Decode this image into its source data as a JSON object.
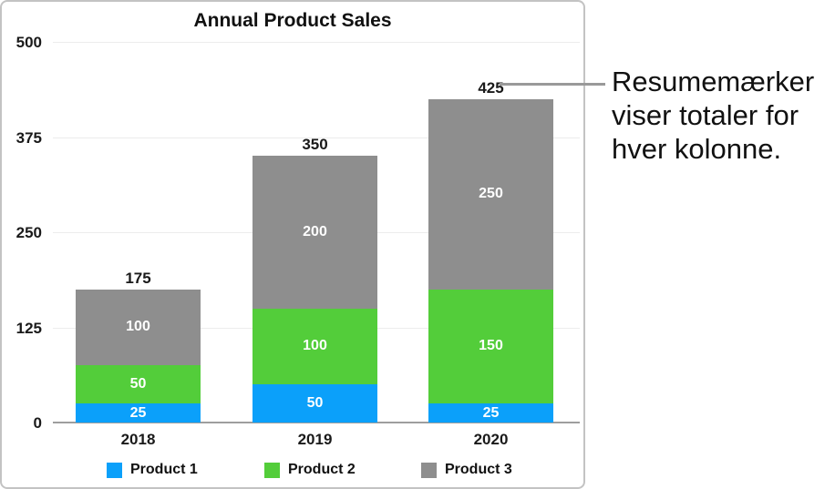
{
  "chart_data": {
    "type": "bar",
    "stacked": true,
    "title": "Annual Product Sales",
    "categories": [
      "2018",
      "2019",
      "2020"
    ],
    "series": [
      {
        "name": "Product 1",
        "color": "#0ba0fa",
        "values": [
          25,
          50,
          25
        ]
      },
      {
        "name": "Product 2",
        "color": "#53cd3a",
        "values": [
          50,
          100,
          150
        ]
      },
      {
        "name": "Product 3",
        "color": "#8e8e8e",
        "values": [
          100,
          200,
          250
        ]
      }
    ],
    "totals": [
      175,
      350,
      425
    ],
    "yticks": [
      0,
      125,
      250,
      375,
      500
    ],
    "ylim": [
      0,
      500
    ],
    "grid": true,
    "legend_position": "bottom",
    "value_label_color": "#ffffff",
    "total_label_color": "#1a1a1a"
  },
  "callout": {
    "lines": [
      "Resumemærker",
      "viser totaler for",
      "hver kolonne."
    ],
    "leader_color": "#999999"
  },
  "colors": {
    "frame_border": "#c3c3c3",
    "gridline": "#ececec",
    "baseline": "#9e9e9e",
    "text": "#1a1a1a"
  }
}
